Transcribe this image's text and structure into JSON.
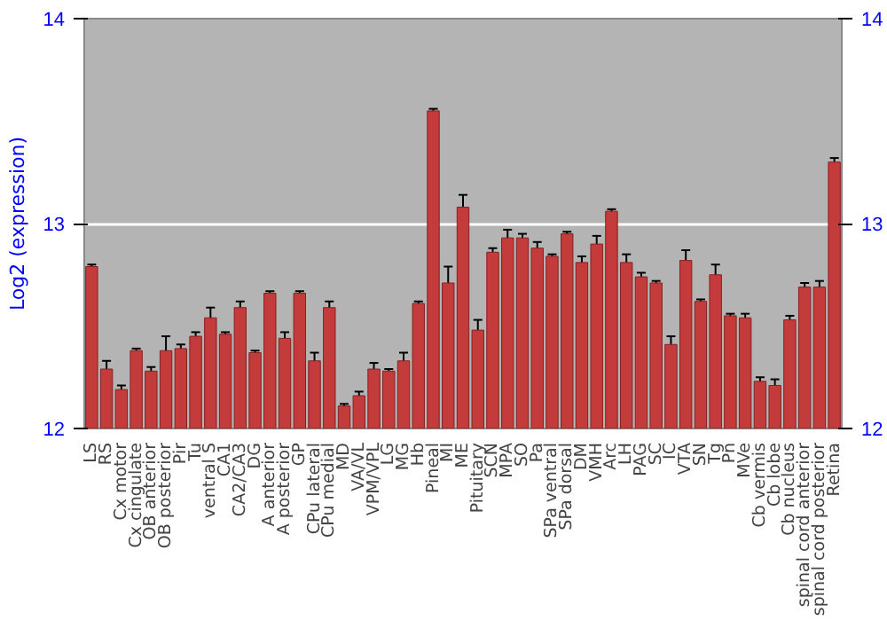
{
  "chart_data": {
    "type": "bar",
    "ylabel": "Log2 (expression)",
    "categories": [
      "LS",
      "RS",
      "Cx motor",
      "Cx cingulate",
      "OB anterior",
      "OB posterior",
      "Pir",
      "Tu",
      "ventral S",
      "CA1",
      "CA2/CA3",
      "DG",
      "A anterior",
      "A posterior",
      "GP",
      "CPu lateral",
      "CPu medial",
      "MD",
      "VA/VL",
      "VPM/VPL",
      "LG",
      "MG",
      "Hb",
      "Pineal",
      "MI",
      "ME",
      "Pituitary",
      "SCN",
      "MPA",
      "SO",
      "Pa",
      "SPa ventral",
      "SPa dorsal",
      "DM",
      "VMH",
      "Arc",
      "LH",
      "PAG",
      "SC",
      "IC",
      "VTA",
      "SN",
      "Tg",
      "Pn",
      "MVe",
      "Cb vermis",
      "Cb lobe",
      "Cb nucleus",
      "spinal cord anterior",
      "spinal cord posterior",
      "Retina"
    ],
    "values": [
      12.79,
      12.29,
      12.19,
      12.38,
      12.28,
      12.38,
      12.39,
      12.45,
      12.54,
      12.46,
      12.59,
      12.37,
      12.66,
      12.44,
      12.66,
      12.33,
      12.59,
      12.11,
      12.16,
      12.29,
      12.28,
      12.33,
      12.61,
      13.55,
      12.71,
      13.08,
      12.48,
      12.86,
      12.93,
      12.93,
      12.88,
      12.84,
      12.95,
      12.81,
      12.9,
      13.06,
      12.81,
      12.74,
      12.71,
      12.41,
      12.82,
      12.62,
      12.75,
      12.55,
      12.54,
      12.23,
      12.21,
      12.53,
      12.69,
      12.69,
      13.3
    ],
    "errors": [
      0.01,
      0.04,
      0.02,
      0.01,
      0.02,
      0.07,
      0.02,
      0.02,
      0.05,
      0.01,
      0.03,
      0.01,
      0.01,
      0.03,
      0.01,
      0.04,
      0.03,
      0.01,
      0.02,
      0.03,
      0.01,
      0.04,
      0.01,
      0.01,
      0.08,
      0.06,
      0.05,
      0.02,
      0.04,
      0.02,
      0.03,
      0.01,
      0.01,
      0.03,
      0.04,
      0.01,
      0.04,
      0.02,
      0.01,
      0.04,
      0.05,
      0.01,
      0.05,
      0.01,
      0.02,
      0.02,
      0.03,
      0.02,
      0.02,
      0.03,
      0.02
    ],
    "color": "#c33b3b",
    "ylim": [
      12,
      14
    ],
    "yticks": [
      12,
      13,
      14
    ],
    "y2lim": [
      12,
      14
    ],
    "y2ticks": [
      12,
      13,
      14
    ],
    "grid": "y"
  }
}
